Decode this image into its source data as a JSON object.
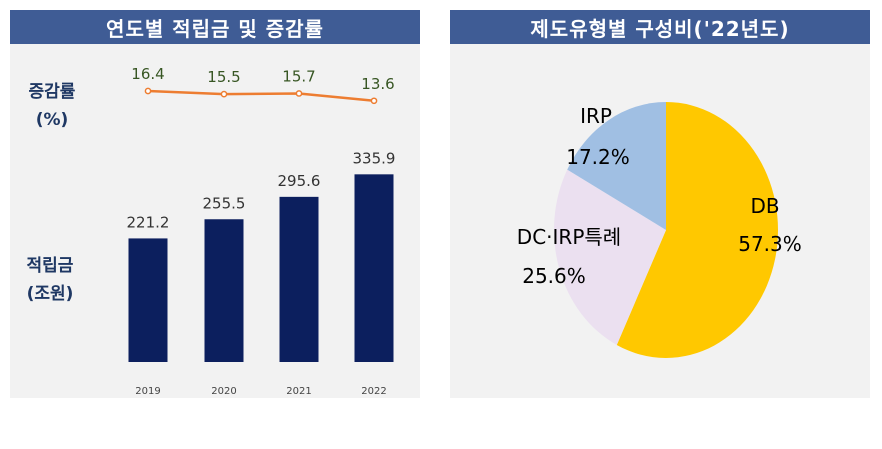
{
  "left_panel": {
    "header": "연도별 적립금 및 증감률",
    "growth_label_line1": "증감률",
    "growth_label_line2": "(%)",
    "reserve_label_line1": "적립금",
    "reserve_label_line2": "(조원)"
  },
  "right_panel": {
    "header": "제도유형별 구성비('22년도)"
  },
  "colors": {
    "header_bg": "#3f5c95",
    "bar": "#0c1f5e",
    "line": "#ed7d31",
    "db": "#ffc800",
    "dc_irp": "#ebe0f0",
    "irp": "#a0bfe3"
  },
  "chart_data": [
    {
      "type": "bar",
      "categories": [
        "2019",
        "2020",
        "2021",
        "2022"
      ],
      "values": [
        221.2,
        255.5,
        295.6,
        335.9
      ],
      "value_labels": [
        "221.2",
        "255.5",
        "295.6",
        "335.9"
      ]
    },
    {
      "type": "line",
      "categories": [
        "2019",
        "2020",
        "2021",
        "2022"
      ],
      "values": [
        16.4,
        15.5,
        15.7,
        13.6
      ],
      "value_labels": [
        "16.4",
        "15.5",
        "15.7",
        "13.6"
      ]
    },
    {
      "type": "pie",
      "slices": [
        {
          "label": "DB",
          "value": 57.3,
          "value_label": "57.3%"
        },
        {
          "label": "DC·IRP특례",
          "value": 25.6,
          "value_label": "25.6%"
        },
        {
          "label": "IRP",
          "value": 17.2,
          "value_label": "17.2%"
        }
      ]
    }
  ]
}
